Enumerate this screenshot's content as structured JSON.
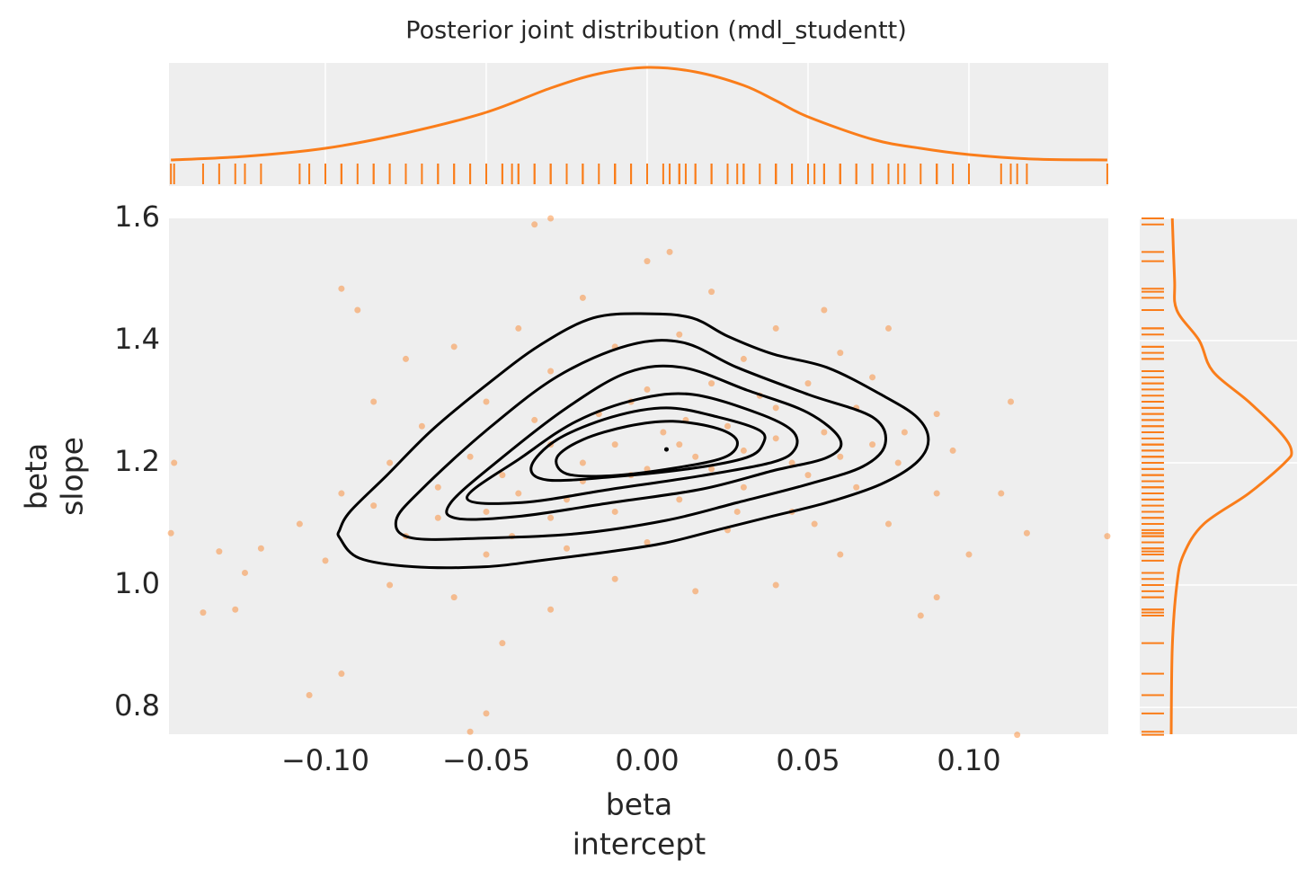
{
  "chart_data": {
    "type": "scatter",
    "title": "Posterior joint distribution (mdl_studentt)",
    "xlabel": [
      "beta",
      "intercept"
    ],
    "ylabel": [
      "beta",
      "slope"
    ],
    "color": "#fa7d1a",
    "contour_color": "#000000",
    "background": "#eeeeee",
    "marginal_grid": true,
    "xlim": [
      -0.1486,
      0.1433
    ],
    "ylim": [
      0.756,
      1.6
    ],
    "xticks": [
      {
        "value": -0.1,
        "label": "−0.10"
      },
      {
        "value": -0.05,
        "label": "−0.05"
      },
      {
        "value": 0,
        "label": "0.00"
      },
      {
        "value": 0.05,
        "label": "0.05"
      },
      {
        "value": 0.1,
        "label": "0.10"
      }
    ],
    "yticks": [
      {
        "value": 0.8,
        "label": "0.8"
      },
      {
        "value": 1.0,
        "label": "1.0"
      },
      {
        "value": 1.2,
        "label": "1.2"
      },
      {
        "value": 1.4,
        "label": "1.4"
      },
      {
        "value": 1.6,
        "label": "1.6"
      }
    ],
    "x": [
      -0.148,
      -0.138,
      -0.128,
      -0.133,
      -0.105,
      -0.095,
      -0.045,
      -0.05,
      -0.055,
      0.085,
      0.115,
      0.143,
      0.118,
      0.11,
      0.113,
      0.07,
      0.075,
      0.055,
      0.007,
      0.0,
      -0.03,
      -0.035,
      -0.095,
      -0.09,
      -0.147,
      -0.125,
      -0.12,
      0.09,
      0.1,
      -0.085,
      -0.075,
      -0.06,
      -0.04,
      -0.02,
      0.02,
      0.04,
      0.06,
      0.09,
      0.095,
      0.09,
      0.075,
      0.06,
      0.04,
      0.015,
      -0.01,
      -0.03,
      -0.06,
      -0.08,
      -0.1,
      -0.108,
      -0.095,
      -0.08,
      -0.07,
      -0.05,
      -0.03,
      -0.01,
      0.01,
      0.03,
      0.05,
      0.065,
      0.08,
      0.078,
      0.065,
      0.045,
      0.025,
      0.0,
      -0.025,
      -0.05,
      -0.075,
      -0.085,
      -0.065,
      -0.045,
      -0.03,
      -0.015,
      0.0,
      0.02,
      0.04,
      0.055,
      0.06,
      0.05,
      0.03,
      0.01,
      -0.01,
      -0.03,
      -0.05,
      -0.04,
      -0.02,
      0.0,
      0.015,
      0.03,
      0.04,
      0.025,
      0.005,
      -0.01,
      -0.02,
      -0.005,
      0.01,
      0.02,
      -0.035,
      0.045,
      -0.055,
      0.035,
      -0.005,
      0.07,
      -0.065,
      0.012,
      -0.025,
      0.028,
      -0.042,
      0.052
    ],
    "y": [
      1.085,
      0.955,
      0.96,
      1.055,
      0.82,
      0.855,
      0.905,
      0.79,
      0.76,
      0.95,
      0.755,
      1.08,
      1.085,
      1.15,
      1.3,
      1.34,
      1.42,
      1.45,
      1.545,
      1.53,
      1.6,
      1.59,
      1.485,
      1.45,
      1.2,
      1.02,
      1.06,
      0.98,
      1.05,
      1.3,
      1.37,
      1.39,
      1.42,
      1.47,
      1.48,
      1.42,
      1.38,
      1.28,
      1.22,
      1.15,
      1.1,
      1.05,
      1.0,
      0.99,
      1.01,
      0.96,
      0.98,
      1.0,
      1.04,
      1.1,
      1.15,
      1.2,
      1.26,
      1.3,
      1.35,
      1.39,
      1.41,
      1.37,
      1.33,
      1.29,
      1.25,
      1.2,
      1.16,
      1.12,
      1.09,
      1.07,
      1.06,
      1.05,
      1.08,
      1.13,
      1.16,
      1.18,
      1.23,
      1.28,
      1.32,
      1.33,
      1.29,
      1.25,
      1.21,
      1.18,
      1.16,
      1.14,
      1.12,
      1.11,
      1.12,
      1.15,
      1.17,
      1.19,
      1.21,
      1.22,
      1.24,
      1.26,
      1.25,
      1.23,
      1.2,
      1.18,
      1.23,
      1.19,
      1.27,
      1.2,
      1.21,
      1.31,
      1.3,
      1.23,
      1.11,
      1.27,
      1.14,
      1.12,
      1.08,
      1.1
    ],
    "contours": [
      {
        "x": [
          -0.0955,
          -0.0922,
          -0.081,
          -0.067,
          -0.0503,
          -0.0335,
          -0.0168,
          0,
          0.014,
          0.0251,
          0.0391,
          0.0559,
          0.0726,
          0.0838,
          0.0874,
          0.0838,
          0.0726,
          0.0559,
          0.0391,
          0.0223,
          0.0056,
          -0.0112,
          -0.0335,
          -0.0503,
          -0.0726,
          -0.0894,
          -0.0955
        ],
        "y": [
          1.091,
          1.121,
          1.179,
          1.253,
          1.326,
          1.392,
          1.437,
          1.444,
          1.437,
          1.407,
          1.378,
          1.356,
          1.312,
          1.275,
          1.238,
          1.201,
          1.165,
          1.135,
          1.113,
          1.091,
          1.069,
          1.055,
          1.04,
          1.03,
          1.03,
          1.044,
          1.077
        ]
      },
      {
        "x": [
          -0.078,
          -0.07,
          -0.05,
          -0.028,
          -0.006,
          0.011,
          0.028,
          0.05,
          0.07,
          0.074,
          0.067,
          0.05,
          0.028,
          0.006,
          -0.022,
          -0.05,
          -0.073
        ],
        "y": [
          1.106,
          1.157,
          1.253,
          1.341,
          1.392,
          1.397,
          1.356,
          1.312,
          1.275,
          1.231,
          1.194,
          1.165,
          1.135,
          1.106,
          1.084,
          1.077,
          1.077
        ]
      },
      {
        "x": [
          -0.061,
          -0.045,
          -0.025,
          -0.006,
          0.011,
          0.031,
          0.05,
          0.06,
          0.056,
          0.039,
          0.017,
          -0.011,
          -0.039,
          -0.059
        ],
        "y": [
          1.135,
          1.209,
          1.29,
          1.348,
          1.356,
          1.319,
          1.282,
          1.238,
          1.209,
          1.187,
          1.157,
          1.135,
          1.113,
          1.109
        ]
      },
      {
        "x": [
          -0.056,
          -0.039,
          -0.022,
          -0.003,
          0.014,
          0.034,
          0.045,
          0.046,
          0.039,
          0.017,
          -0.011,
          -0.039
        ],
        "y": [
          1.143,
          1.209,
          1.268,
          1.304,
          1.312,
          1.282,
          1.253,
          1.223,
          1.201,
          1.179,
          1.157,
          1.135
        ]
      },
      {
        "x": [
          -0.036,
          -0.028,
          -0.011,
          0.006,
          0.022,
          0.035,
          0.036,
          0.031,
          0.014,
          -0.011,
          -0.031
        ],
        "y": [
          1.194,
          1.238,
          1.275,
          1.29,
          1.275,
          1.253,
          1.231,
          1.209,
          1.191,
          1.177,
          1.172
        ]
      },
      {
        "x": [
          -0.028,
          -0.02,
          -0.006,
          0.008,
          0.022,
          0.028,
          0.024,
          0.008,
          -0.011,
          -0.025
        ],
        "y": [
          1.209,
          1.238,
          1.26,
          1.268,
          1.256,
          1.235,
          1.209,
          1.191,
          1.179,
          1.182
        ]
      },
      {
        "x": [
          0.006
        ],
        "y": [
          1.222
        ]
      }
    ],
    "kde_top": {
      "ylim": [
        -2.7,
        11
      ],
      "x": [
        -0.148,
        -0.125,
        -0.1,
        -0.075,
        -0.05,
        -0.03,
        -0.015,
        0,
        0.015,
        0.03,
        0.04,
        0.05,
        0.07,
        0.085,
        0.1,
        0.12,
        0.143
      ],
      "density": [
        0.2,
        0.6,
        1.5,
        3.2,
        5.5,
        8.2,
        9.8,
        10.5,
        10.0,
        8.5,
        6.8,
        5.0,
        2.5,
        1.5,
        0.8,
        0.3,
        0.2
      ]
    },
    "kde_right": {
      "xlim": [
        -2.5,
        11.5
      ],
      "y": [
        0.756,
        0.9,
        1.0,
        1.05,
        1.1,
        1.15,
        1.2,
        1.22,
        1.25,
        1.3,
        1.35,
        1.4,
        1.45,
        1.5,
        1.6
      ],
      "density": [
        0.3,
        0.4,
        0.8,
        1.4,
        3.2,
        7.2,
        10.4,
        11.0,
        10.0,
        7.2,
        4.0,
        2.8,
        0.8,
        0.6,
        0.4
      ]
    }
  }
}
